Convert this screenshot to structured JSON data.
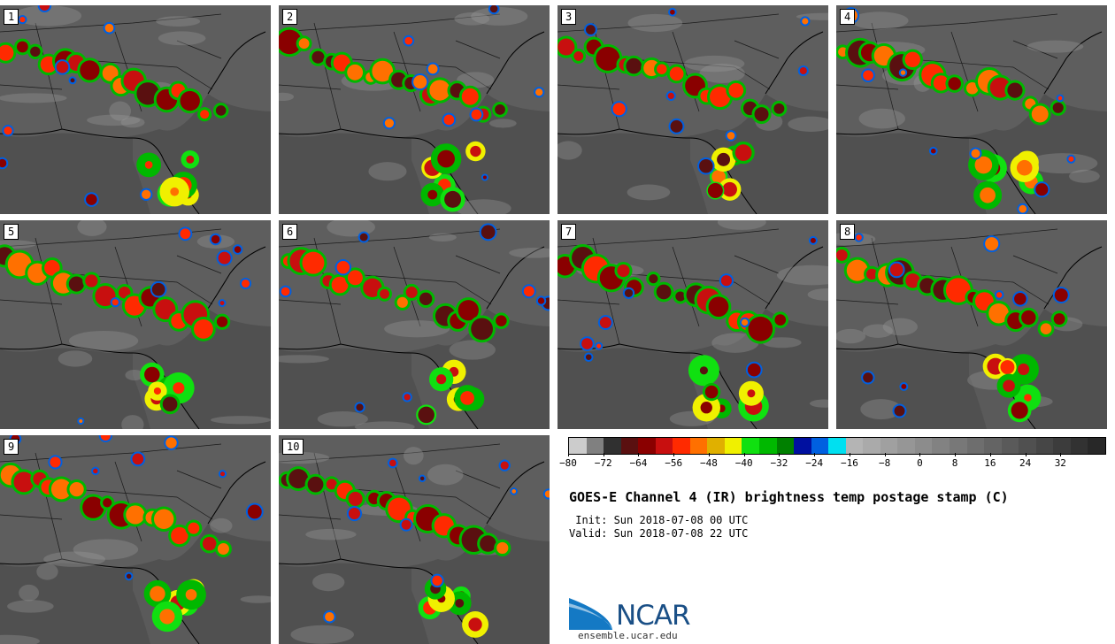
{
  "title": "GOES-E Channel 4 (IR) brightness temp postage stamp (C)",
  "init_text": " Init: Sun 2018-07-08 00 UTC",
  "valid_text": "Valid: Sun 2018-07-08 22 UTC",
  "logo": {
    "name": "NCAR",
    "url": "ensemble.ucar.edu"
  },
  "panels": [
    "1",
    "2",
    "3",
    "4",
    "5",
    "6",
    "7",
    "8",
    "9",
    "10"
  ],
  "colorbar": {
    "min": -80,
    "max": 42,
    "step": 4,
    "tick_labels": [
      "−80",
      "−72",
      "−64",
      "−56",
      "−48",
      "−40",
      "−32",
      "−24",
      "−16",
      "−8",
      "0",
      "8",
      "16",
      "24",
      "32"
    ],
    "tick_values": [
      -80,
      -72,
      -64,
      -56,
      -48,
      -40,
      -32,
      -24,
      -16,
      -8,
      0,
      8,
      16,
      24,
      32
    ],
    "colors": [
      "#cccccc",
      "#808080",
      "#303030",
      "#5a1010",
      "#8a0000",
      "#c80f0f",
      "#ff2a00",
      "#ff7000",
      "#e0b000",
      "#f0f000",
      "#10e010",
      "#00b800",
      "#008000",
      "#0010a0",
      "#0060e0",
      "#00e0f0",
      "#b4b4b4",
      "#aaaaaa",
      "#a0a0a0",
      "#969696",
      "#8c8c8c",
      "#828282",
      "#787878",
      "#6e6e6e",
      "#646464",
      "#5a5a5a",
      "#505050",
      "#464646",
      "#3c3c3c",
      "#323232",
      "#282828"
    ]
  }
}
